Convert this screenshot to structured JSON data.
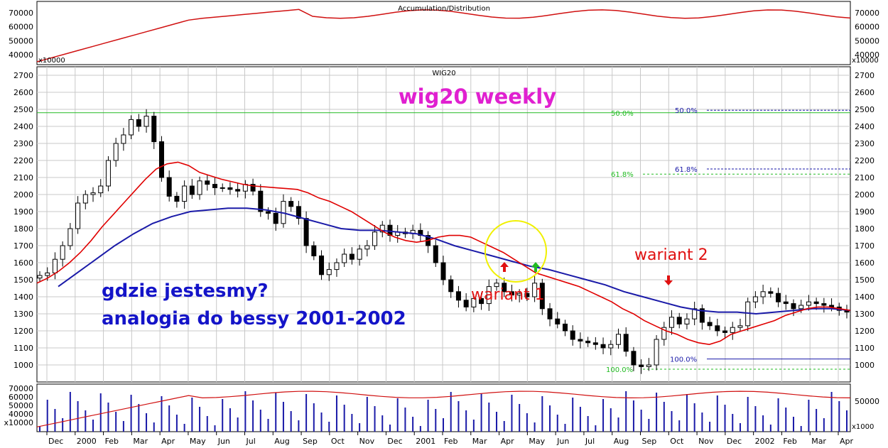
{
  "colors": {
    "background": "#ffffff",
    "grid": "#c8c8c8",
    "candle_up": "#ffffff",
    "candle_down": "#000000",
    "ma_short": "#e00000",
    "ma_long": "#1a1aa8",
    "fib_green": "#22bb22",
    "fib_blue": "#1a1aa8",
    "title_magenta": "#e020d0",
    "annotation_blue": "#1414c8",
    "annotation_red": "#e01010",
    "circle": "#f0f000",
    "volume": "#1a1aa8",
    "ad_line": "#d01010"
  },
  "top_panel": {
    "title": "Accumulation/Distribution",
    "y_ticks": [
      "70000",
      "60000",
      "50000",
      "40000"
    ],
    "unit": "x10000"
  },
  "main_panel": {
    "title": "WIG20",
    "headline": "wig20 weekly",
    "annotation_line1": "gdzie jestesmy?",
    "annotation_line2": "analogia do bessy 2001-2002",
    "wariant1": "wariant 1",
    "wariant2": "wariant 2",
    "fib_green": [
      {
        "label": "50.0%",
        "value": 2480
      },
      {
        "label": "61.8%",
        "value": 2120
      },
      {
        "label": "100.0%",
        "value": 975
      }
    ],
    "fib_blue": [
      {
        "label": "50.0%",
        "value": 2495
      },
      {
        "label": "61.8%",
        "value": 2150
      },
      {
        "label": "100.0%",
        "value": 1035
      }
    ]
  },
  "volume_panel": {
    "y_ticks_left": [
      "70000",
      "60000",
      "50000",
      "40000",
      "x10000"
    ],
    "y_tick_right": "50000",
    "unit_right": "x1000"
  },
  "chart_data": {
    "type": "candlestick",
    "title": "WIG20",
    "ylim": [
      900,
      2750
    ],
    "y_ticks": [
      1000,
      1100,
      1200,
      1300,
      1400,
      1500,
      1600,
      1700,
      1800,
      1900,
      2000,
      2100,
      2200,
      2300,
      2400,
      2500,
      2600,
      2700
    ],
    "x_labels": [
      "Dec",
      "2000",
      "Feb",
      "Mar",
      "Apr",
      "May",
      "Jun",
      "Jul",
      "Aug",
      "Sep",
      "Oct",
      "Nov",
      "Dec",
      "2001",
      "Feb",
      "Mar",
      "Apr",
      "May",
      "Jun",
      "Jul",
      "Aug",
      "Sep",
      "Oct",
      "Nov",
      "Dec",
      "2002",
      "Feb",
      "Mar",
      "Apr"
    ],
    "weekly_close": [
      1525,
      1540,
      1620,
      1700,
      1800,
      1950,
      2000,
      2010,
      2050,
      2200,
      2300,
      2350,
      2440,
      2400,
      2460,
      2310,
      2100,
      1990,
      1960,
      2050,
      2000,
      2080,
      2060,
      2040,
      2040,
      2030,
      2020,
      2060,
      2020,
      1900,
      1890,
      1830,
      1960,
      1930,
      1860,
      1700,
      1640,
      1530,
      1560,
      1600,
      1650,
      1620,
      1680,
      1700,
      1780,
      1820,
      1760,
      1780,
      1770,
      1790,
      1760,
      1700,
      1600,
      1500,
      1430,
      1380,
      1340,
      1390,
      1360,
      1460,
      1480,
      1430,
      1410,
      1420,
      1400,
      1480,
      1330,
      1270,
      1240,
      1200,
      1150,
      1140,
      1130,
      1120,
      1100,
      1120,
      1180,
      1080,
      1000,
      990,
      1000,
      1150,
      1220,
      1280,
      1240,
      1270,
      1330,
      1250,
      1230,
      1200,
      1190,
      1220,
      1230,
      1370,
      1400,
      1430,
      1420,
      1370,
      1360,
      1330,
      1350,
      1370,
      1360,
      1350,
      1340,
      1320,
      1310
    ],
    "series": [
      {
        "name": "",
        "values": [
          1480,
          1510,
          1550,
          1600,
          1660,
          1730,
          1810,
          1880,
          1950,
          2020,
          2090,
          2150,
          2180,
          2190,
          2170,
          2130,
          2110,
          2090,
          2075,
          2060,
          2050,
          2045,
          2040,
          2035,
          2030,
          2010,
          1980,
          1960,
          1930,
          1900,
          1860,
          1820,
          1780,
          1750,
          1730,
          1720,
          1730,
          1750,
          1760,
          1760,
          1750,
          1720,
          1690,
          1660,
          1620,
          1580,
          1540,
          1520,
          1500,
          1480,
          1460,
          1430,
          1400,
          1370,
          1330,
          1300,
          1260,
          1230,
          1200,
          1180,
          1150,
          1130,
          1120,
          1140,
          1180,
          1200,
          1220,
          1240,
          1260,
          1290,
          1310,
          1330,
          1340,
          1340,
          1330,
          1320
        ]
      },
      {
        "name": "",
        "values": [
          1460,
          1540,
          1620,
          1700,
          1770,
          1830,
          1870,
          1900,
          1910,
          1920,
          1920,
          1910,
          1890,
          1860,
          1830,
          1800,
          1790,
          1790,
          1780,
          1770,
          1740,
          1700,
          1670,
          1640,
          1610,
          1580,
          1560,
          1530,
          1500,
          1470,
          1430,
          1400,
          1370,
          1340,
          1320,
          1310,
          1310,
          1300,
          1310,
          1320,
          1330,
          1330,
          1320
        ]
      }
    ],
    "annotations": [
      "wig20 weekly",
      "gdzie jestesmy?",
      "analogia do bessy 2001-2002",
      "wariant 1",
      "wariant 2"
    ]
  }
}
